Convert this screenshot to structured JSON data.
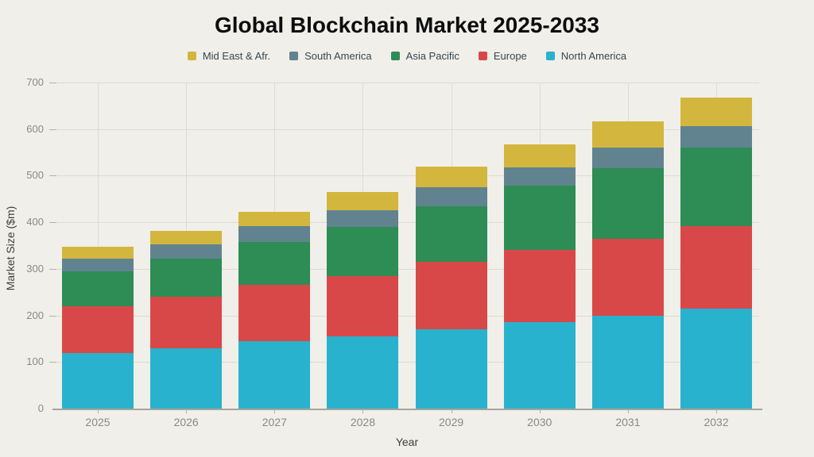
{
  "chart_data": {
    "type": "bar",
    "stacked": true,
    "title": "Global Blockchain Market 2025-2033",
    "xlabel": "Year",
    "ylabel": "Market Size ($m)",
    "categories": [
      "2025",
      "2026",
      "2027",
      "2028",
      "2029",
      "2030",
      "2031",
      "2032"
    ],
    "series": [
      {
        "name": "North America",
        "color": "#29b2cd",
        "values": [
          120,
          130,
          145,
          155,
          170,
          185,
          200,
          215
        ]
      },
      {
        "name": "Europe",
        "color": "#d94848",
        "values": [
          100,
          110,
          120,
          130,
          145,
          155,
          165,
          177
        ]
      },
      {
        "name": "Asia Pacific",
        "color": "#2e8c55",
        "values": [
          75,
          82,
          92,
          105,
          120,
          138,
          151,
          168
        ]
      },
      {
        "name": "South America",
        "color": "#60838f",
        "values": [
          27,
          31,
          34,
          35,
          40,
          40,
          44,
          47
        ]
      },
      {
        "name": "Mid East & Afr.",
        "color": "#d3b63e",
        "values": [
          25,
          29,
          31,
          40,
          45,
          50,
          56,
          61
        ]
      }
    ],
    "stack_totals": [
      347,
      382,
      422,
      465,
      520,
      568,
      616,
      668
    ],
    "ylim": [
      0,
      700
    ],
    "yticks": [
      0,
      100,
      200,
      300,
      400,
      500,
      600,
      700
    ],
    "legend_position": "top",
    "legend_order": [
      "Mid East & Afr.",
      "South America",
      "Asia Pacific",
      "Europe",
      "North America"
    ],
    "grid": true,
    "colors": {
      "background": "#f0efe9",
      "gridline": "#dddbd3",
      "axis_line": "#a8a49c",
      "tick_label": "#8a8a84",
      "axis_label": "#3d3d3d",
      "legend_text": "#37474f",
      "title": "#0d0d0d"
    }
  }
}
